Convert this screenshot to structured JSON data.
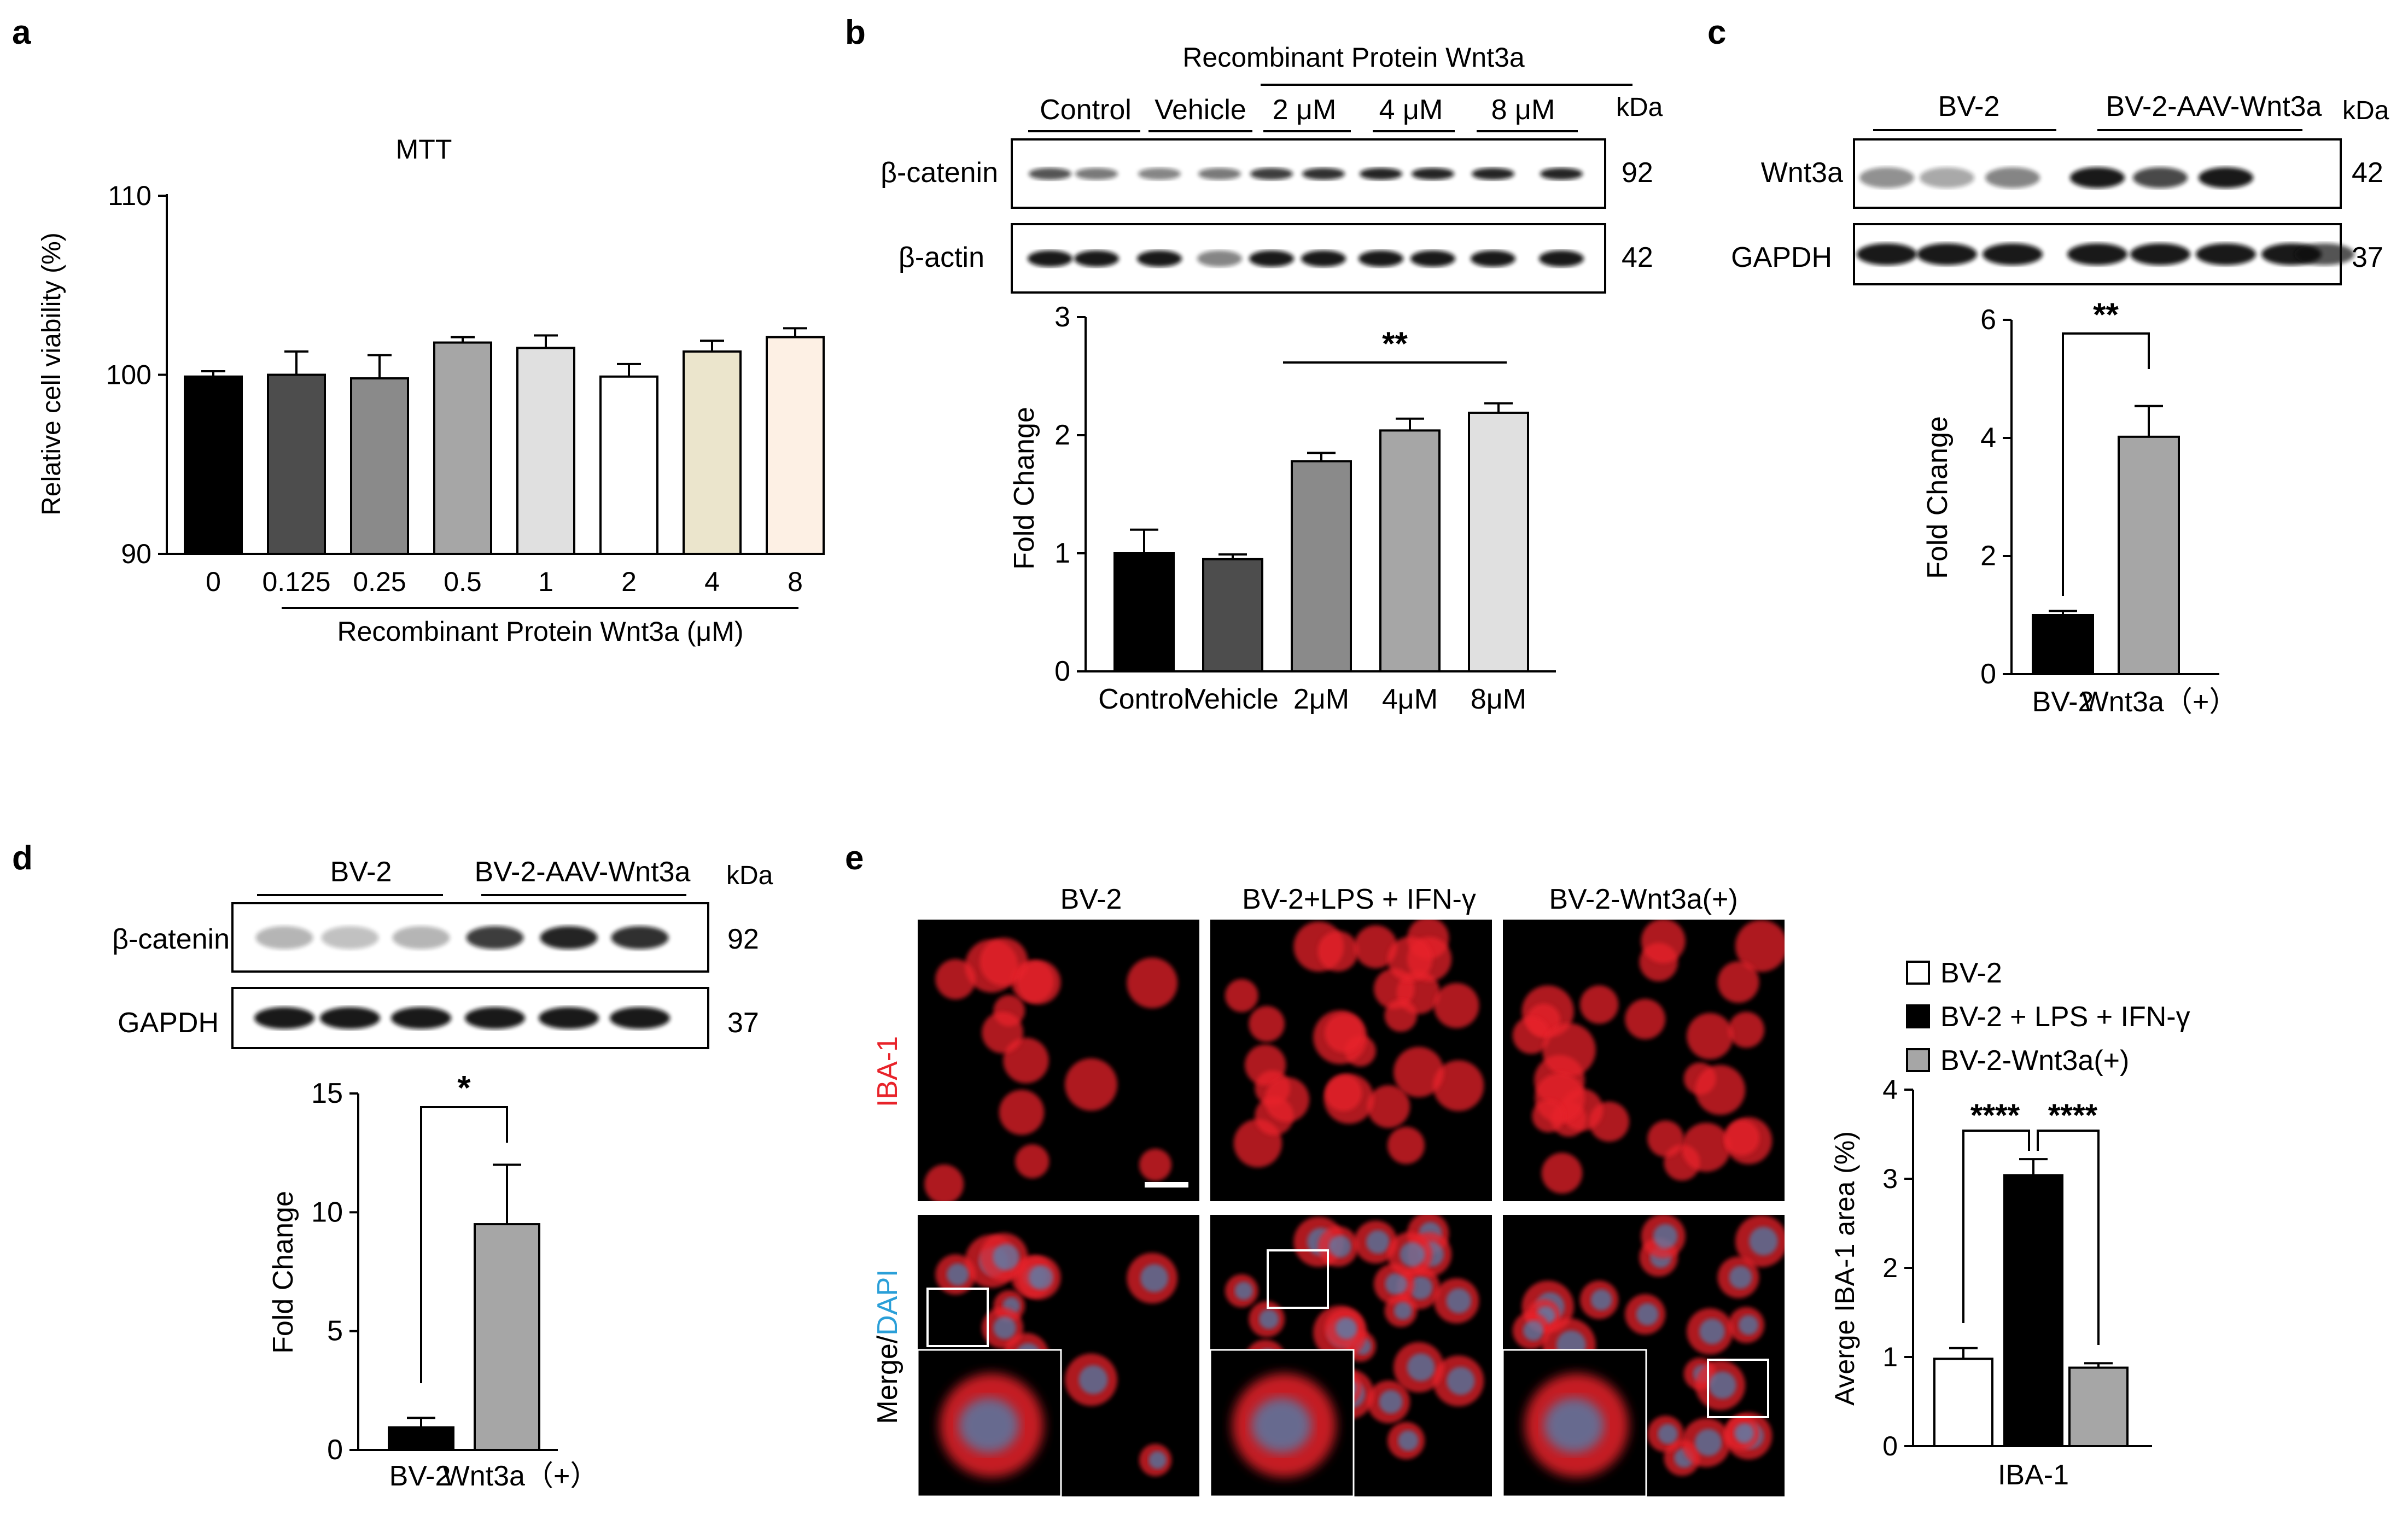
{
  "panel_labels": {
    "a": "a",
    "b": "b",
    "c": "c",
    "d": "d",
    "e": "e"
  },
  "blots": {
    "b": {
      "header_top": "Recombinant  Protein Wnt3a",
      "groups": [
        "Control",
        "Vehicle",
        "2 μM",
        "4 μM",
        "8 μM"
      ],
      "kda": "kDa",
      "rows": [
        {
          "label": "β-catenin",
          "kda": "92"
        },
        {
          "label": "β-actin",
          "kda": "42"
        }
      ]
    },
    "c": {
      "groups": [
        "BV-2",
        "BV-2-AAV-Wnt3a"
      ],
      "kda": "kDa",
      "rows": [
        {
          "label": "Wnt3a",
          "kda": "42"
        },
        {
          "label": "GAPDH",
          "kda": "37"
        }
      ]
    },
    "d": {
      "groups": [
        "BV-2",
        "BV-2-AAV-Wnt3a"
      ],
      "kda": "kDa",
      "rows": [
        {
          "label": "β-catenin",
          "kda": "92"
        },
        {
          "label": "GAPDH",
          "kda": "37"
        }
      ]
    }
  },
  "micrographs": {
    "columns": [
      "BV-2",
      "BV-2+LPS + IFN-γ",
      "BV-2-Wnt3a(+)"
    ],
    "row1_label": "IBA-1",
    "row2_label_merge": "Merge/",
    "row2_label_dapi": "DAPI",
    "colors": {
      "iba1": "#e8232a",
      "dapi": "#2a9fd8"
    }
  },
  "chart_data": [
    {
      "panel": "a",
      "type": "bar",
      "title": "MTT",
      "ylabel": "Relative cell viability (%)",
      "xlabel": "Recombinant  Protein Wnt3a (μM)",
      "ylim": [
        90,
        110
      ],
      "yticks": [
        "90",
        "100",
        "110"
      ],
      "categories": [
        "0",
        "0.125",
        "0.25",
        "0.5",
        "1",
        "2",
        "4",
        "8"
      ],
      "values": [
        99.9,
        100.0,
        99.8,
        101.8,
        101.5,
        99.9,
        101.3,
        102.1
      ],
      "errors": [
        0.3,
        1.3,
        1.3,
        0.3,
        0.7,
        0.7,
        0.6,
        0.5
      ],
      "colors": [
        "#000000",
        "#4d4d4d",
        "#8a8a8a",
        "#a6a6a6",
        "#e0e0e0",
        "#ffffff",
        "#ebe5cc",
        "#fdf0e4"
      ]
    },
    {
      "panel": "b",
      "type": "bar",
      "ylabel": "Fold Change",
      "ylim": [
        0,
        3
      ],
      "yticks": [
        "0",
        "1",
        "2",
        "3"
      ],
      "categories": [
        "Control",
        "Vehicle",
        "2μM",
        "4μM",
        "8μM"
      ],
      "values": [
        1.0,
        0.95,
        1.78,
        2.04,
        2.19
      ],
      "errors": [
        0.2,
        0.04,
        0.07,
        0.1,
        0.08
      ],
      "colors": [
        "#000000",
        "#4d4d4d",
        "#8a8a8a",
        "#a6a6a6",
        "#e0e0e0"
      ],
      "annotations": [
        {
          "text": "**",
          "from": 2,
          "to": 4
        }
      ]
    },
    {
      "panel": "c",
      "type": "bar",
      "ylabel": "Fold Change",
      "ylim": [
        0,
        6
      ],
      "yticks": [
        "0",
        "2",
        "4",
        "6"
      ],
      "categories": [
        "BV-2",
        "Wnt3a（+）"
      ],
      "values": [
        1.0,
        4.02
      ],
      "errors": [
        0.07,
        0.52
      ],
      "colors": [
        "#000000",
        "#a6a6a6"
      ],
      "annotations": [
        {
          "text": "**",
          "from": 0,
          "to": 1
        }
      ]
    },
    {
      "panel": "d",
      "type": "bar",
      "ylabel": "Fold Change",
      "ylim": [
        0,
        15
      ],
      "yticks": [
        "0",
        "5",
        "10",
        "15"
      ],
      "categories": [
        "BV-2",
        "Wnt3a（+）"
      ],
      "values": [
        0.95,
        9.5
      ],
      "errors": [
        0.4,
        2.5
      ],
      "colors": [
        "#000000",
        "#a6a6a6"
      ],
      "annotations": [
        {
          "text": "*",
          "from": 0,
          "to": 1
        }
      ]
    },
    {
      "panel": "e",
      "type": "bar",
      "ylabel": "Averge IBA-1 area (%)",
      "xlabel": "IBA-1",
      "ylim": [
        0,
        4
      ],
      "yticks": [
        "0",
        "1",
        "2",
        "3",
        "4"
      ],
      "series": [
        {
          "name": "BV-2",
          "values": [
            0.98
          ],
          "errors": [
            0.12
          ],
          "color": "#ffffff"
        },
        {
          "name": "BV-2 + LPS + IFN-γ",
          "values": [
            3.04
          ],
          "errors": [
            0.18
          ],
          "color": "#000000"
        },
        {
          "name": "BV-2-Wnt3a(+)",
          "values": [
            0.88
          ],
          "errors": [
            0.05
          ],
          "color": "#a6a6a6"
        }
      ],
      "annotations": [
        {
          "text": "****",
          "from": 0,
          "to": 1
        },
        {
          "text": "****",
          "from": 1,
          "to": 2
        }
      ]
    }
  ]
}
